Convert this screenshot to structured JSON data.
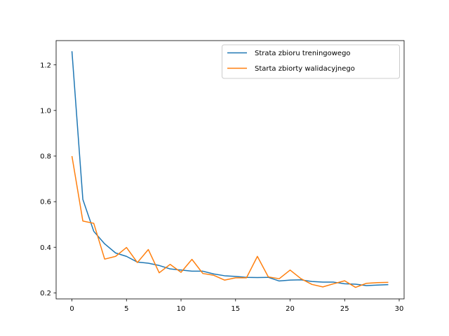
{
  "chart_data": {
    "type": "line",
    "title": "",
    "xlabel": "",
    "ylabel": "",
    "xlim": [
      -1.45,
      30.45
    ],
    "ylim": [
      0.1735,
      1.3065
    ],
    "xticks": [
      0,
      5,
      10,
      15,
      20,
      25,
      30
    ],
    "yticks": [
      0.2,
      0.4,
      0.6,
      0.8,
      1.0,
      1.2
    ],
    "xtick_labels": [
      "0",
      "5",
      "10",
      "15",
      "20",
      "25",
      "30"
    ],
    "ytick_labels": [
      "0.2",
      "0.4",
      "0.6",
      "0.8",
      "1.0",
      "1.2"
    ],
    "grid": false,
    "legend_position": "top-right",
    "x": [
      0,
      1,
      2,
      3,
      4,
      5,
      6,
      7,
      8,
      9,
      10,
      11,
      12,
      13,
      14,
      15,
      16,
      17,
      18,
      19,
      20,
      21,
      22,
      23,
      24,
      25,
      26,
      27,
      28,
      29
    ],
    "series": [
      {
        "name": "Strata zbioru treningowego",
        "color": "#1f77b4",
        "values": [
          1.26,
          0.61,
          0.47,
          0.415,
          0.375,
          0.36,
          0.335,
          0.33,
          0.32,
          0.305,
          0.3,
          0.295,
          0.295,
          0.283,
          0.275,
          0.272,
          0.268,
          0.267,
          0.268,
          0.252,
          0.256,
          0.257,
          0.25,
          0.247,
          0.247,
          0.24,
          0.238,
          0.232,
          0.234,
          0.236
        ]
      },
      {
        "name": "Starta zbiorty walidacyjnego",
        "color": "#ff7f0e",
        "values": [
          0.8,
          0.515,
          0.505,
          0.348,
          0.36,
          0.399,
          0.333,
          0.39,
          0.288,
          0.325,
          0.29,
          0.347,
          0.285,
          0.277,
          0.256,
          0.266,
          0.266,
          0.36,
          0.27,
          0.262,
          0.3,
          0.262,
          0.237,
          0.226,
          0.24,
          0.253,
          0.224,
          0.242,
          0.245,
          0.246
        ]
      }
    ]
  }
}
